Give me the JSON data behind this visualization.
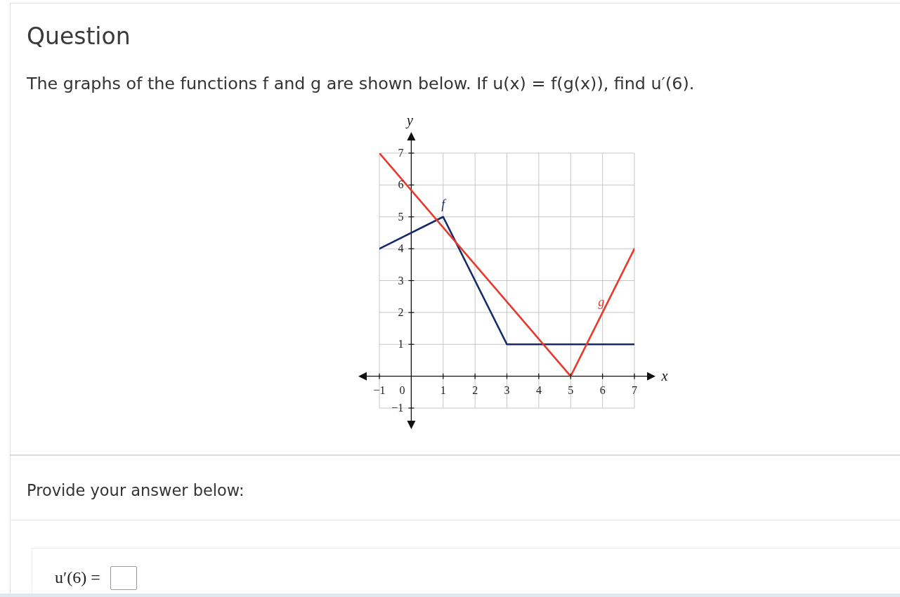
{
  "chart_data": {
    "type": "line",
    "title": "Question",
    "subtitle": "The graphs of the functions f and g are shown below. If u(x) = f(g(x)), find u′(6).",
    "xlabel": "x",
    "ylabel": "y",
    "annotations": [
      "Provide your answer below:",
      "u′(6) ="
    ],
    "series": [
      {
        "name": "f",
        "color": "#15296b",
        "x": [
          -1,
          1,
          3,
          7
        ],
        "values": [
          4,
          5,
          1,
          1
        ]
      },
      {
        "name": "g",
        "color": "#e8392b",
        "x": [
          -1,
          5,
          7
        ],
        "values": [
          7,
          0,
          4
        ]
      }
    ],
    "xlim": [
      -1,
      7
    ],
    "ylim": [
      -1,
      7
    ],
    "xticks": [
      {
        "value": -1,
        "label": "−1"
      },
      0,
      1,
      2,
      3,
      4,
      5,
      6,
      7
    ],
    "yticks": [
      {
        "value": -1,
        "label": "−1"
      },
      1,
      2,
      3,
      4,
      5,
      6,
      7
    ],
    "grid": true,
    "marker": "none",
    "line_style": "solid"
  }
}
